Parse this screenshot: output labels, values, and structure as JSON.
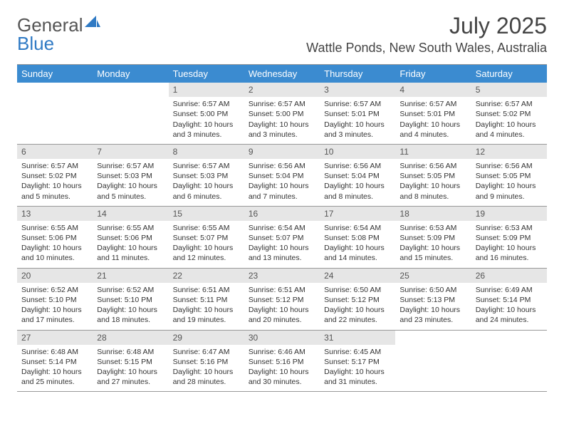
{
  "brand": {
    "first": "General",
    "second": "Blue"
  },
  "title": "July 2025",
  "location": "Wattle Ponds, New South Wales, Australia",
  "colors": {
    "header_bg": "#3b8bd0",
    "day_bg": "#e6e6e6",
    "border": "#999999",
    "text": "#333333",
    "brand_blue": "#2f7ac4"
  },
  "weekdays": [
    "Sunday",
    "Monday",
    "Tuesday",
    "Wednesday",
    "Thursday",
    "Friday",
    "Saturday"
  ],
  "weeks": [
    [
      null,
      null,
      {
        "d": "1",
        "sunrise": "6:57 AM",
        "sunset": "5:00 PM",
        "daylight": "10 hours and 3 minutes."
      },
      {
        "d": "2",
        "sunrise": "6:57 AM",
        "sunset": "5:00 PM",
        "daylight": "10 hours and 3 minutes."
      },
      {
        "d": "3",
        "sunrise": "6:57 AM",
        "sunset": "5:01 PM",
        "daylight": "10 hours and 3 minutes."
      },
      {
        "d": "4",
        "sunrise": "6:57 AM",
        "sunset": "5:01 PM",
        "daylight": "10 hours and 4 minutes."
      },
      {
        "d": "5",
        "sunrise": "6:57 AM",
        "sunset": "5:02 PM",
        "daylight": "10 hours and 4 minutes."
      }
    ],
    [
      {
        "d": "6",
        "sunrise": "6:57 AM",
        "sunset": "5:02 PM",
        "daylight": "10 hours and 5 minutes."
      },
      {
        "d": "7",
        "sunrise": "6:57 AM",
        "sunset": "5:03 PM",
        "daylight": "10 hours and 5 minutes."
      },
      {
        "d": "8",
        "sunrise": "6:57 AM",
        "sunset": "5:03 PM",
        "daylight": "10 hours and 6 minutes."
      },
      {
        "d": "9",
        "sunrise": "6:56 AM",
        "sunset": "5:04 PM",
        "daylight": "10 hours and 7 minutes."
      },
      {
        "d": "10",
        "sunrise": "6:56 AM",
        "sunset": "5:04 PM",
        "daylight": "10 hours and 8 minutes."
      },
      {
        "d": "11",
        "sunrise": "6:56 AM",
        "sunset": "5:05 PM",
        "daylight": "10 hours and 8 minutes."
      },
      {
        "d": "12",
        "sunrise": "6:56 AM",
        "sunset": "5:05 PM",
        "daylight": "10 hours and 9 minutes."
      }
    ],
    [
      {
        "d": "13",
        "sunrise": "6:55 AM",
        "sunset": "5:06 PM",
        "daylight": "10 hours and 10 minutes."
      },
      {
        "d": "14",
        "sunrise": "6:55 AM",
        "sunset": "5:06 PM",
        "daylight": "10 hours and 11 minutes."
      },
      {
        "d": "15",
        "sunrise": "6:55 AM",
        "sunset": "5:07 PM",
        "daylight": "10 hours and 12 minutes."
      },
      {
        "d": "16",
        "sunrise": "6:54 AM",
        "sunset": "5:07 PM",
        "daylight": "10 hours and 13 minutes."
      },
      {
        "d": "17",
        "sunrise": "6:54 AM",
        "sunset": "5:08 PM",
        "daylight": "10 hours and 14 minutes."
      },
      {
        "d": "18",
        "sunrise": "6:53 AM",
        "sunset": "5:09 PM",
        "daylight": "10 hours and 15 minutes."
      },
      {
        "d": "19",
        "sunrise": "6:53 AM",
        "sunset": "5:09 PM",
        "daylight": "10 hours and 16 minutes."
      }
    ],
    [
      {
        "d": "20",
        "sunrise": "6:52 AM",
        "sunset": "5:10 PM",
        "daylight": "10 hours and 17 minutes."
      },
      {
        "d": "21",
        "sunrise": "6:52 AM",
        "sunset": "5:10 PM",
        "daylight": "10 hours and 18 minutes."
      },
      {
        "d": "22",
        "sunrise": "6:51 AM",
        "sunset": "5:11 PM",
        "daylight": "10 hours and 19 minutes."
      },
      {
        "d": "23",
        "sunrise": "6:51 AM",
        "sunset": "5:12 PM",
        "daylight": "10 hours and 20 minutes."
      },
      {
        "d": "24",
        "sunrise": "6:50 AM",
        "sunset": "5:12 PM",
        "daylight": "10 hours and 22 minutes."
      },
      {
        "d": "25",
        "sunrise": "6:50 AM",
        "sunset": "5:13 PM",
        "daylight": "10 hours and 23 minutes."
      },
      {
        "d": "26",
        "sunrise": "6:49 AM",
        "sunset": "5:14 PM",
        "daylight": "10 hours and 24 minutes."
      }
    ],
    [
      {
        "d": "27",
        "sunrise": "6:48 AM",
        "sunset": "5:14 PM",
        "daylight": "10 hours and 25 minutes."
      },
      {
        "d": "28",
        "sunrise": "6:48 AM",
        "sunset": "5:15 PM",
        "daylight": "10 hours and 27 minutes."
      },
      {
        "d": "29",
        "sunrise": "6:47 AM",
        "sunset": "5:16 PM",
        "daylight": "10 hours and 28 minutes."
      },
      {
        "d": "30",
        "sunrise": "6:46 AM",
        "sunset": "5:16 PM",
        "daylight": "10 hours and 30 minutes."
      },
      {
        "d": "31",
        "sunrise": "6:45 AM",
        "sunset": "5:17 PM",
        "daylight": "10 hours and 31 minutes."
      },
      null,
      null
    ]
  ],
  "labels": {
    "sunrise": "Sunrise:",
    "sunset": "Sunset:",
    "daylight": "Daylight:"
  }
}
